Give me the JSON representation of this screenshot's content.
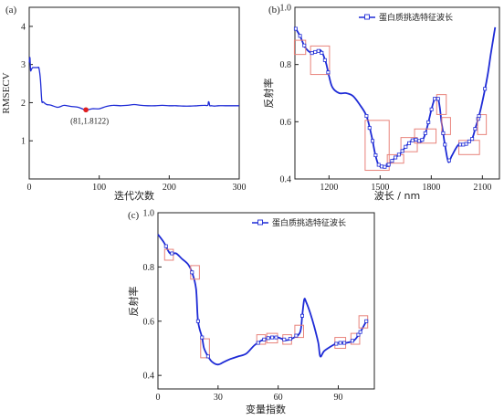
{
  "colors": {
    "line": "#1e2bd6",
    "box": "#e8837b",
    "marker": "#e01f1f",
    "axis": "#222222"
  },
  "chart_data": [
    {
      "panel": "(a)",
      "type": "line",
      "xlabel": "迭代次数",
      "ylabel": "RMSECV",
      "xlim": [
        0,
        300
      ],
      "ylim": [
        0,
        4.5
      ],
      "xticks": [
        0,
        100,
        200,
        300
      ],
      "yticks": [
        1,
        2,
        3,
        4
      ],
      "grid": false,
      "x": [
        0,
        1,
        2,
        3,
        4,
        5,
        6,
        7,
        8,
        10,
        12,
        14,
        16,
        18,
        20,
        25,
        30,
        40,
        45,
        50,
        60,
        70,
        81,
        90,
        100,
        110,
        120,
        130,
        140,
        150,
        160,
        170,
        180,
        190,
        200,
        210,
        220,
        230,
        240,
        250,
        255,
        256,
        257,
        258,
        260,
        265,
        270,
        280,
        290,
        300
      ],
      "y": [
        3.05,
        3.18,
        2.85,
        2.87,
        2.9,
        2.92,
        2.92,
        2.92,
        2.92,
        2.92,
        2.92,
        2.9,
        2.6,
        2.05,
        2.02,
        1.95,
        1.94,
        1.88,
        1.9,
        1.93,
        1.9,
        1.88,
        1.81,
        1.84,
        1.84,
        1.9,
        1.93,
        1.92,
        1.93,
        1.95,
        1.93,
        1.92,
        1.92,
        1.93,
        1.92,
        1.92,
        1.91,
        1.91,
        1.92,
        1.93,
        1.93,
        2.02,
        2.0,
        1.92,
        1.92,
        1.91,
        1.92,
        1.92,
        1.92,
        1.92
      ],
      "annotation": {
        "label": "(81,1.8122)",
        "x": 81,
        "y": 1.8122
      }
    },
    {
      "panel": "(b)",
      "type": "line",
      "xlabel": "波长 / nm",
      "ylabel": "反射率",
      "xlim": [
        1000,
        2200
      ],
      "ylim": [
        0.4,
        1.0
      ],
      "xticks": [
        1200,
        1500,
        1800,
        2100
      ],
      "yticks": [
        0.4,
        0.6,
        0.8,
        1.0
      ],
      "legend": "蛋白质挑选特征波长",
      "legend_position": "top-right",
      "x": [
        1000,
        1030,
        1060,
        1100,
        1150,
        1180,
        1200,
        1220,
        1260,
        1300,
        1340,
        1380,
        1420,
        1450,
        1470,
        1490,
        1520,
        1550,
        1580,
        1620,
        1660,
        1700,
        1740,
        1760,
        1780,
        1800,
        1820,
        1840,
        1850,
        1860,
        1870,
        1880,
        1900,
        1920,
        1960,
        2000,
        2020,
        2040,
        2060,
        2080,
        2100,
        2130,
        2150,
        2175
      ],
      "y": [
        0.93,
        0.9,
        0.86,
        0.84,
        0.85,
        0.81,
        0.76,
        0.72,
        0.7,
        0.7,
        0.69,
        0.66,
        0.62,
        0.55,
        0.49,
        0.45,
        0.44,
        0.45,
        0.47,
        0.49,
        0.52,
        0.54,
        0.53,
        0.55,
        0.59,
        0.64,
        0.68,
        0.68,
        0.65,
        0.6,
        0.56,
        0.52,
        0.46,
        0.48,
        0.52,
        0.52,
        0.53,
        0.54,
        0.58,
        0.62,
        0.67,
        0.76,
        0.84,
        0.93
      ],
      "features": [
        {
          "x": [
            1005,
            1055
          ],
          "y": [
            0.84,
            0.88
          ]
        },
        {
          "x": [
            1100,
            1195
          ],
          "y": [
            0.77,
            0.86
          ]
        },
        {
          "x": [
            1420,
            1545
          ],
          "y": [
            0.435,
            0.6
          ]
        },
        {
          "x": [
            1550,
            1630
          ],
          "y": [
            0.46,
            0.48
          ]
        },
        {
          "x": [
            1630,
            1710
          ],
          "y": [
            0.5,
            0.54
          ]
        },
        {
          "x": [
            1710,
            1820
          ],
          "y": [
            0.53,
            0.57
          ]
        },
        {
          "x": [
            1840,
            1880
          ],
          "y": [
            0.63,
            0.69
          ]
        },
        {
          "x": [
            1870,
            1905
          ],
          "y": [
            0.56,
            0.61
          ]
        },
        {
          "x": [
            1970,
            2075
          ],
          "y": [
            0.49,
            0.53
          ]
        },
        {
          "x": [
            2080,
            2115
          ],
          "y": [
            0.56,
            0.62
          ]
        }
      ]
    },
    {
      "panel": "(c)",
      "type": "line",
      "xlabel": "变量指数",
      "ylabel": "反射率",
      "xlim": [
        0,
        108
      ],
      "ylim": [
        0.35,
        1.0
      ],
      "xticks": [
        0,
        30,
        60,
        90
      ],
      "yticks": [
        0.4,
        0.6,
        0.8,
        1.0
      ],
      "legend": "蛋白质挑选特征波长",
      "legend_position": "top-right",
      "x": [
        0,
        3,
        6,
        9,
        12,
        15,
        17,
        19,
        20,
        22,
        23,
        25,
        27,
        30,
        33,
        36,
        40,
        44,
        48,
        52,
        56,
        60,
        64,
        68,
        71,
        72,
        73,
        74,
        76,
        78,
        80,
        81,
        83,
        87,
        90,
        94,
        98,
        101,
        104
      ],
      "y": [
        0.92,
        0.89,
        0.85,
        0.85,
        0.83,
        0.81,
        0.78,
        0.72,
        0.6,
        0.54,
        0.5,
        0.47,
        0.45,
        0.44,
        0.45,
        0.46,
        0.47,
        0.48,
        0.51,
        0.53,
        0.54,
        0.54,
        0.53,
        0.54,
        0.56,
        0.62,
        0.68,
        0.67,
        0.63,
        0.58,
        0.52,
        0.47,
        0.49,
        0.51,
        0.52,
        0.52,
        0.53,
        0.56,
        0.6
      ],
      "features": [
        {
          "x": [
            4,
            7
          ],
          "y": [
            0.83,
            0.86
          ]
        },
        {
          "x": [
            17,
            20
          ],
          "y": [
            0.76,
            0.8
          ]
        },
        {
          "x": [
            22,
            25
          ],
          "y": [
            0.47,
            0.53
          ]
        },
        {
          "x": [
            50,
            53
          ],
          "y": [
            0.52,
            0.545
          ]
        },
        {
          "x": [
            55,
            59
          ],
          "y": [
            0.525,
            0.55
          ]
        },
        {
          "x": [
            63,
            66
          ],
          "y": [
            0.52,
            0.545
          ]
        },
        {
          "x": [
            69,
            72
          ],
          "y": [
            0.545,
            0.58
          ]
        },
        {
          "x": [
            89,
            93
          ],
          "y": [
            0.505,
            0.535
          ]
        },
        {
          "x": [
            97,
            100
          ],
          "y": [
            0.52,
            0.55
          ]
        },
        {
          "x": [
            101,
            104
          ],
          "y": [
            0.58,
            0.615
          ]
        }
      ]
    }
  ]
}
